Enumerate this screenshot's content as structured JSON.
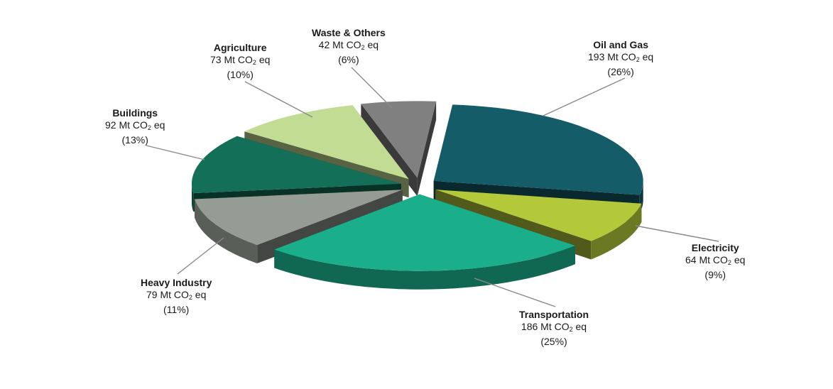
{
  "chart_data": {
    "type": "pie",
    "unit": "Mt CO",
    "unit_subscript": "2",
    "unit_suffix": " eq",
    "slices": [
      {
        "name": "Oil and Gas",
        "value": 193,
        "percent": "(26%)",
        "color": "#145c68"
      },
      {
        "name": "Electricity",
        "value": 64,
        "percent": "(9%)",
        "color": "#b4c93a"
      },
      {
        "name": "Transportation",
        "value": 186,
        "percent": "(25%)",
        "color": "#1aae8a"
      },
      {
        "name": "Heavy Industry",
        "value": 79,
        "percent": "(11%)",
        "color": "#949c94"
      },
      {
        "name": "Buildings",
        "value": 92,
        "percent": "(13%)",
        "color": "#136f57"
      },
      {
        "name": "Agriculture",
        "value": 73,
        "percent": "(10%)",
        "color": "#c2dc94"
      },
      {
        "name": "Waste & Others",
        "value": 42,
        "percent": "(6%)",
        "color": "#808080"
      }
    ]
  }
}
